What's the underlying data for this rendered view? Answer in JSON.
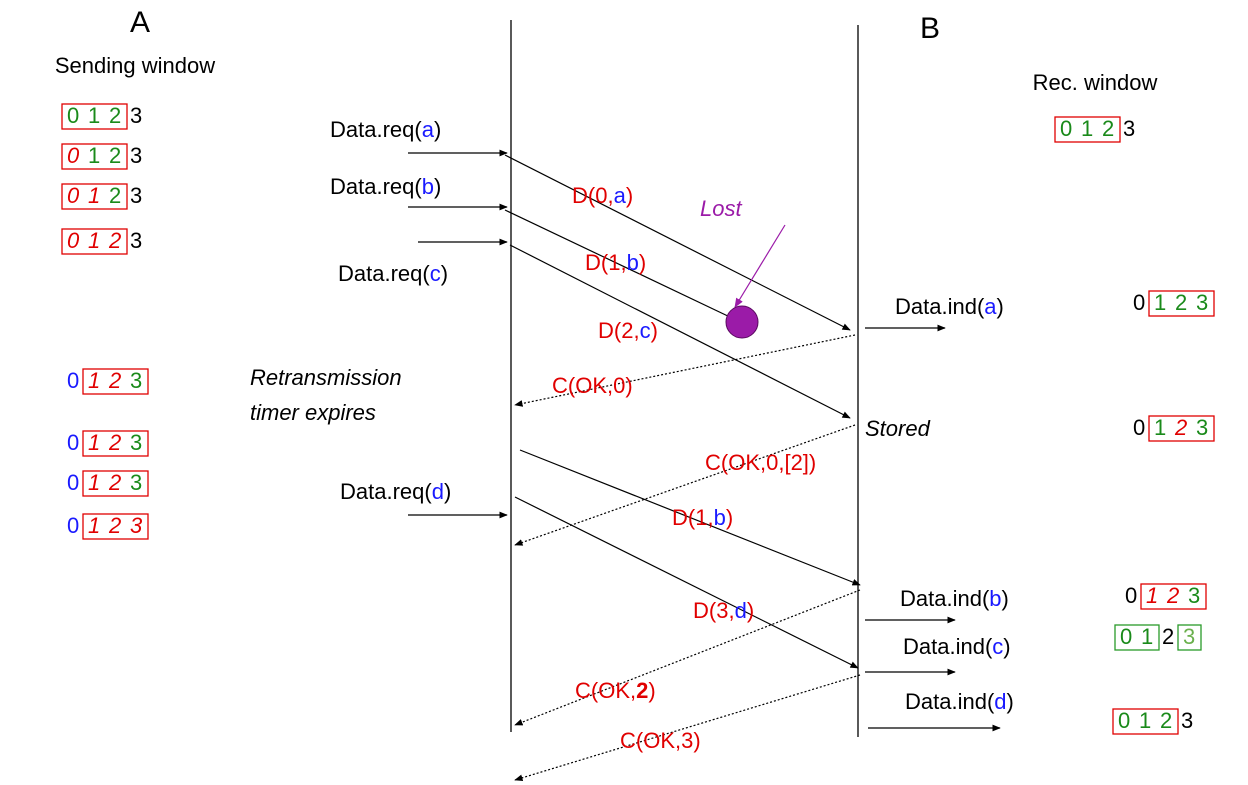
{
  "labels": {
    "A": "A",
    "B": "B",
    "sending_window": "Sending window",
    "rec_window": "Rec. window",
    "lost": "Lost",
    "retransmission": "Retransmission",
    "timer": "timer expires",
    "stored": "Stored"
  },
  "requests": [
    [
      [
        "Data.req(",
        "#000"
      ],
      [
        "a",
        "#1a1aff"
      ],
      [
        ")",
        "#000"
      ]
    ],
    [
      [
        "Data.req(",
        "#000"
      ],
      [
        "b",
        "#1a1aff"
      ],
      [
        ")",
        "#000"
      ]
    ],
    [
      [
        "Data.req(",
        "#000"
      ],
      [
        "c",
        "#1a1aff"
      ],
      [
        ")",
        "#000"
      ]
    ],
    [
      [
        "Data.req(",
        "#000"
      ],
      [
        "d",
        "#1a1aff"
      ],
      [
        ")",
        "#000"
      ]
    ]
  ],
  "indications": [
    [
      [
        "Data.ind(",
        "#000"
      ],
      [
        "a",
        "#1a1aff"
      ],
      [
        ")",
        "#000"
      ]
    ],
    [
      [
        "Data.ind(",
        "#000"
      ],
      [
        "b",
        "#1a1aff"
      ],
      [
        ")",
        "#000"
      ]
    ],
    [
      [
        "Data.ind(",
        "#000"
      ],
      [
        "c",
        "#1a1aff"
      ],
      [
        ")",
        "#000"
      ]
    ],
    [
      [
        "Data.ind(",
        "#000"
      ],
      [
        "d",
        "#1a1aff"
      ],
      [
        ")",
        "#000"
      ]
    ]
  ],
  "frames": [
    [
      [
        "D(0,",
        "#e00000"
      ],
      [
        "a",
        "#1a1aff"
      ],
      [
        ")",
        "#e00000"
      ]
    ],
    [
      [
        "D(1,",
        "#e00000"
      ],
      [
        "b",
        "#1a1aff"
      ],
      [
        ")",
        "#e00000"
      ]
    ],
    [
      [
        "D(2,",
        "#e00000"
      ],
      [
        "c",
        "#1a1aff"
      ],
      [
        ")",
        "#e00000"
      ]
    ],
    [
      [
        "C(OK,0)",
        "#e00000"
      ]
    ],
    [
      [
        "C(OK,0,[2])",
        "#e00000"
      ]
    ],
    [
      [
        "D(1,",
        "#e00000"
      ],
      [
        "b",
        "#1a1aff"
      ],
      [
        ")",
        "#e00000"
      ]
    ],
    [
      [
        "D(3,",
        "#e00000"
      ],
      [
        "d",
        "#1a1aff"
      ],
      [
        ")",
        "#e00000"
      ]
    ],
    [
      [
        "C(OK,",
        "#e00000"
      ],
      [
        "2",
        "#e00000",
        "bold"
      ],
      [
        ")",
        "#e00000"
      ]
    ],
    [
      [
        "C(OK,3)",
        "#e00000"
      ]
    ]
  ],
  "sender_windows": [
    {
      "digits": [
        "0",
        "1",
        "2",
        "3"
      ],
      "colors": [
        "#1a8a1a",
        "#1a8a1a",
        "#1a8a1a",
        "#000"
      ],
      "italic": [
        false,
        false,
        false,
        false
      ],
      "boxed": [
        true,
        true,
        true,
        false
      ],
      "box_color": "#e00000"
    },
    {
      "digits": [
        "0",
        "1",
        "2",
        "3"
      ],
      "colors": [
        "#e00000",
        "#1a8a1a",
        "#1a8a1a",
        "#000"
      ],
      "italic": [
        true,
        false,
        false,
        false
      ],
      "boxed": [
        true,
        true,
        true,
        false
      ],
      "box_color": "#e00000"
    },
    {
      "digits": [
        "0",
        "1",
        "2",
        "3"
      ],
      "colors": [
        "#e00000",
        "#e00000",
        "#1a8a1a",
        "#000"
      ],
      "italic": [
        true,
        true,
        false,
        false
      ],
      "boxed": [
        true,
        true,
        true,
        false
      ],
      "box_color": "#e00000"
    },
    {
      "digits": [
        "0",
        "1",
        "2",
        "3"
      ],
      "colors": [
        "#e00000",
        "#e00000",
        "#e00000",
        "#000"
      ],
      "italic": [
        true,
        true,
        true,
        false
      ],
      "boxed": [
        true,
        true,
        true,
        false
      ],
      "box_color": "#e00000"
    },
    {
      "digits": [
        "0",
        "1",
        "2",
        "3"
      ],
      "colors": [
        "#1a1aff",
        "#e00000",
        "#e00000",
        "#1a8a1a"
      ],
      "italic": [
        false,
        true,
        true,
        false
      ],
      "boxed": [
        false,
        true,
        true,
        true
      ],
      "box_color": "#e00000"
    },
    {
      "digits": [
        "0",
        "1",
        "2",
        "3"
      ],
      "colors": [
        "#1a1aff",
        "#e00000",
        "#e00000",
        "#1a8a1a"
      ],
      "italic": [
        false,
        true,
        true,
        false
      ],
      "boxed": [
        false,
        true,
        true,
        true
      ],
      "box_color": "#e00000"
    },
    {
      "digits": [
        "0",
        "1",
        "2",
        "3"
      ],
      "colors": [
        "#1a1aff",
        "#e00000",
        "#e00000",
        "#1a8a1a"
      ],
      "italic": [
        false,
        true,
        true,
        false
      ],
      "boxed": [
        false,
        true,
        true,
        true
      ],
      "box_color": "#e00000"
    },
    {
      "digits": [
        "0",
        "1",
        "2",
        "3"
      ],
      "colors": [
        "#1a1aff",
        "#e00000",
        "#e00000",
        "#e00000"
      ],
      "italic": [
        false,
        true,
        true,
        true
      ],
      "boxed": [
        false,
        true,
        true,
        true
      ],
      "box_color": "#e00000"
    }
  ],
  "receiver_windows": [
    {
      "digits": [
        "0",
        "1",
        "2",
        "3"
      ],
      "colors": [
        "#1a8a1a",
        "#1a8a1a",
        "#1a8a1a",
        "#000"
      ],
      "italic": [
        false,
        false,
        false,
        false
      ],
      "boxed": [
        true,
        true,
        true,
        false
      ],
      "box_color": "#e00000"
    },
    {
      "digits": [
        "0",
        "1",
        "2",
        "3"
      ],
      "colors": [
        "#000",
        "#1a8a1a",
        "#1a8a1a",
        "#1a8a1a"
      ],
      "italic": [
        false,
        false,
        false,
        false
      ],
      "boxed": [
        false,
        true,
        true,
        true
      ],
      "box_color": "#e00000"
    },
    {
      "digits": [
        "0",
        "1",
        "2",
        "3"
      ],
      "colors": [
        "#000",
        "#1a8a1a",
        "#e00000",
        "#1a8a1a"
      ],
      "italic": [
        false,
        false,
        true,
        false
      ],
      "boxed": [
        false,
        true,
        true,
        true
      ],
      "box_color": "#e00000"
    },
    {
      "digits": [
        "0",
        "1",
        "2",
        "3"
      ],
      "colors": [
        "#000",
        "#e00000",
        "#e00000",
        "#1a8a1a"
      ],
      "italic": [
        false,
        true,
        true,
        false
      ],
      "boxed": [
        false,
        true,
        true,
        true
      ],
      "box_color": "#e00000"
    },
    {
      "digits": [
        "0",
        "1",
        "2",
        "3"
      ],
      "colors": [
        "#1a8a1a",
        "#1a8a1a",
        "#000",
        "#6ab04c"
      ],
      "italic": [
        false,
        false,
        false,
        false
      ],
      "boxed": [
        true,
        true,
        false,
        true
      ],
      "box_color": "#2a9a2a"
    },
    {
      "digits": [
        "0",
        "1",
        "2",
        "3"
      ],
      "colors": [
        "#1a8a1a",
        "#1a8a1a",
        "#1a8a1a",
        "#000"
      ],
      "italic": [
        false,
        false,
        false,
        false
      ],
      "boxed": [
        true,
        true,
        true,
        false
      ],
      "box_color": "#e00000"
    }
  ]
}
